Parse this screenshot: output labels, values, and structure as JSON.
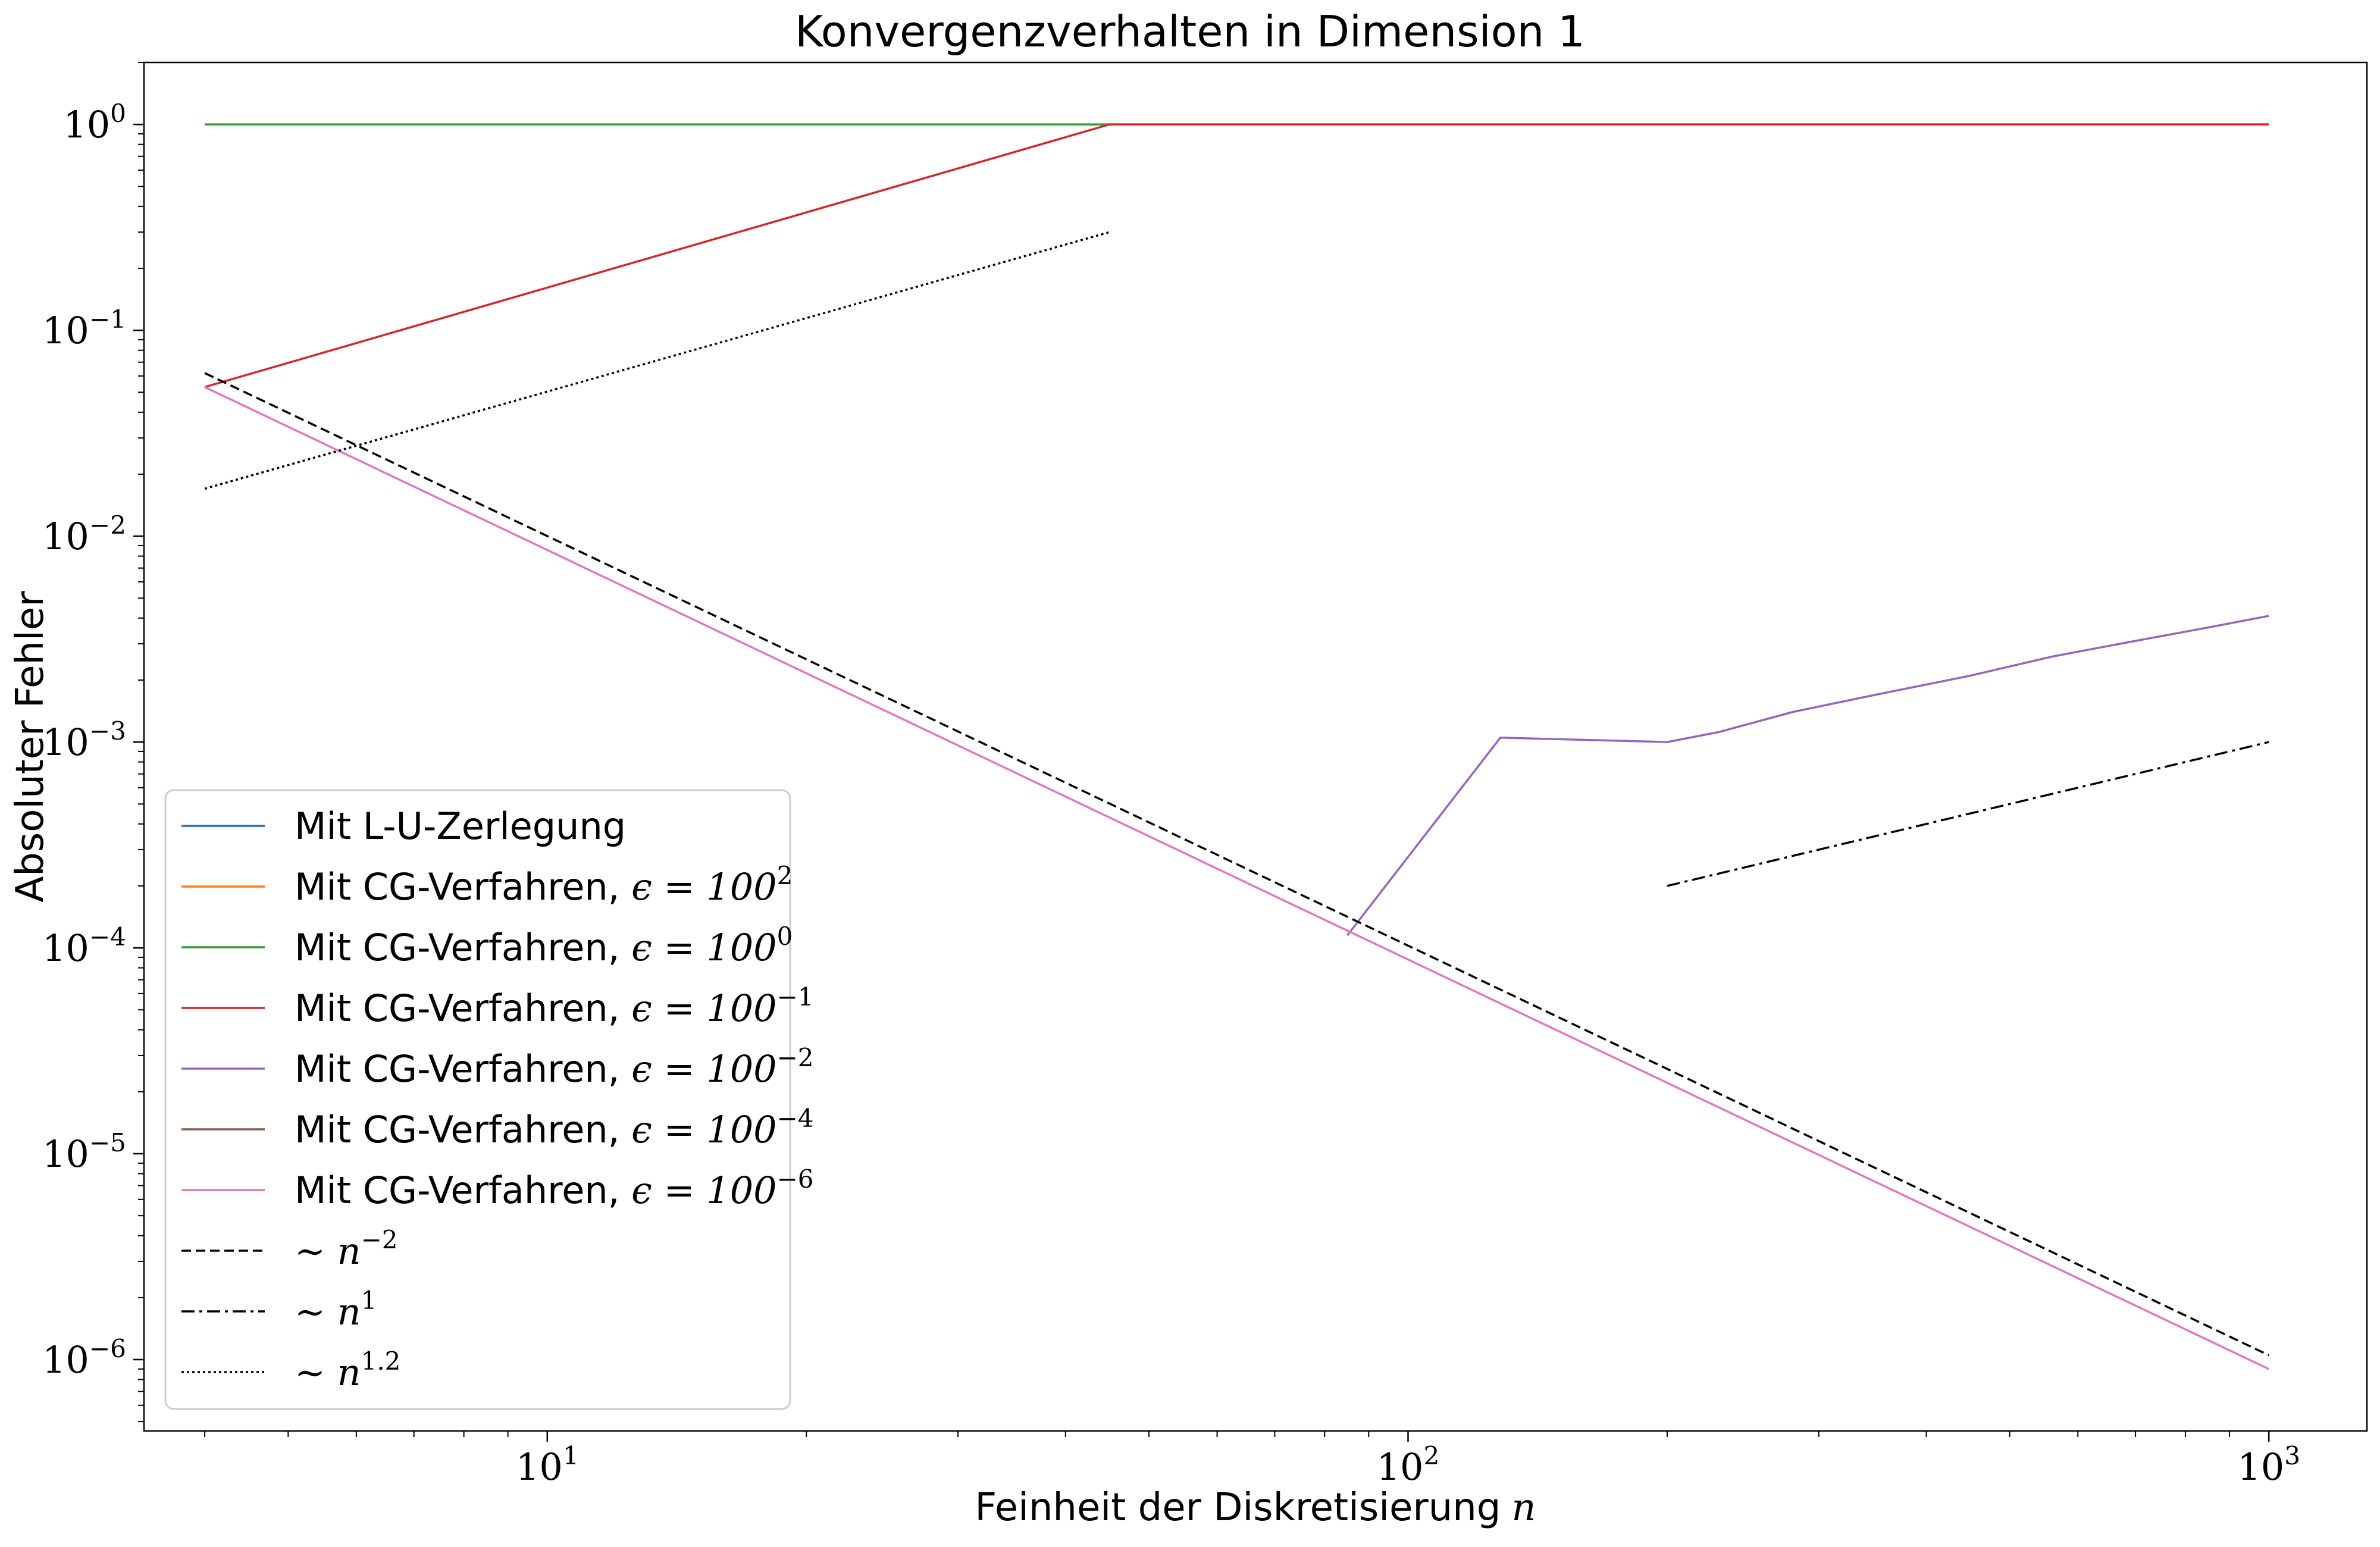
{
  "chart_data": {
    "type": "line",
    "title": "Konvergenzverhalten in Dimension 1",
    "xlabel": "Feinheit der Diskretisierung",
    "xlabel_var": "n",
    "ylabel": "Absoluter Fehler",
    "xscale": "log",
    "yscale": "log",
    "xlim": [
      3.4,
      1300
    ],
    "ylim": [
      4.5e-07,
      2.0
    ],
    "grid": false,
    "legend_position": "lower-left",
    "x_ticks": [
      {
        "value": 10,
        "base": "10",
        "exp": "1"
      },
      {
        "value": 100,
        "base": "10",
        "exp": "2"
      },
      {
        "value": 1000,
        "base": "10",
        "exp": "3"
      }
    ],
    "y_ticks": [
      {
        "value": 1,
        "base": "10",
        "exp": "0"
      },
      {
        "value": 0.1,
        "base": "10",
        "exp": "−1"
      },
      {
        "value": 0.01,
        "base": "10",
        "exp": "−2"
      },
      {
        "value": 0.001,
        "base": "10",
        "exp": "−3"
      },
      {
        "value": 0.0001,
        "base": "10",
        "exp": "−4"
      },
      {
        "value": 1e-05,
        "base": "10",
        "exp": "−5"
      },
      {
        "value": 1e-06,
        "base": "10",
        "exp": "−6"
      }
    ],
    "series": [
      {
        "name": "Mit L-U-Zerlegung",
        "math": "",
        "color": "#1f77b4",
        "dash": "solid",
        "x": [],
        "y": []
      },
      {
        "name": "Mit CG-Verfahren, ",
        "math": "ϵ = 100",
        "sup": "2",
        "color": "#ff7f0e",
        "dash": "solid",
        "x": [],
        "y": []
      },
      {
        "name": "Mit CG-Verfahren, ",
        "math": "ϵ = 100",
        "sup": "0",
        "color": "#2ca02c",
        "dash": "solid",
        "x": [
          4,
          45,
          1000
        ],
        "y": [
          1,
          1,
          1
        ]
      },
      {
        "name": "Mit CG-Verfahren, ",
        "math": "ϵ = 100",
        "sup": "−1",
        "color": "#d62728",
        "dash": "solid",
        "x": [
          4,
          45,
          1000
        ],
        "y": [
          0.053,
          1,
          1
        ]
      },
      {
        "name": "Mit CG-Verfahren, ",
        "math": "ϵ = 100",
        "sup": "−2",
        "color": "#9467bd",
        "dash": "solid",
        "x": [
          85,
          128,
          200,
          230,
          280,
          350,
          450,
          560,
          700,
          850,
          1000
        ],
        "y": [
          0.000115,
          0.00105,
          0.001,
          0.00112,
          0.0014,
          0.0017,
          0.0021,
          0.0026,
          0.0031,
          0.0036,
          0.0041
        ]
      },
      {
        "name": "Mit CG-Verfahren, ",
        "math": "ϵ = 100",
        "sup": "−4",
        "color": "#8c564b",
        "dash": "solid",
        "x": [],
        "y": []
      },
      {
        "name": "Mit CG-Verfahren, ",
        "math": "ϵ = 100",
        "sup": "−6",
        "color": "#e377c2",
        "dash": "solid",
        "x": [
          4,
          1000
        ],
        "y": [
          0.053,
          9e-07
        ]
      },
      {
        "name": "",
        "math": "∼ n",
        "sup": "−2",
        "color": "#000000",
        "dash": "dashed",
        "x": [
          4,
          1000
        ],
        "y": [
          0.062,
          1.05e-06
        ]
      },
      {
        "name": "",
        "math": "∼ n",
        "sup": "1",
        "color": "#000000",
        "dash": "dashdot",
        "x": [
          200,
          1000
        ],
        "y": [
          0.0002,
          0.001
        ]
      },
      {
        "name": "",
        "math": "∼ n",
        "sup": "1.2",
        "color": "#000000",
        "dash": "dotted",
        "x": [
          4,
          45
        ],
        "y": [
          0.017,
          0.3
        ]
      }
    ]
  }
}
